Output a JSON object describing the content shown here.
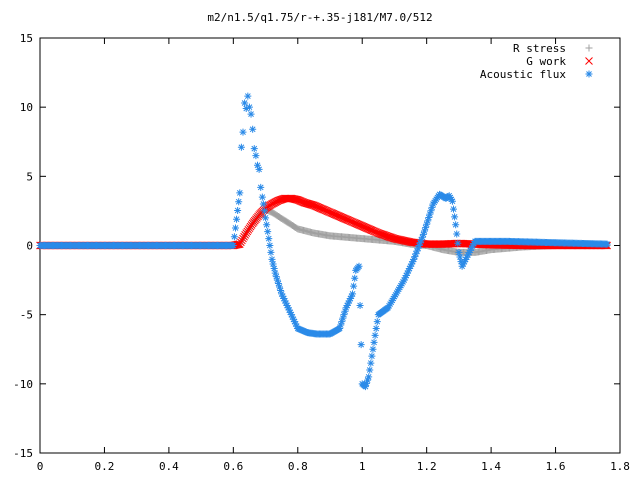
{
  "chart_data": {
    "type": "scatter",
    "title": "m2/n1.5/q1.75/r-+.35-j181/M7.0/512",
    "xlabel": "",
    "ylabel": "",
    "xlim": [
      0,
      1.8
    ],
    "ylim": [
      -15,
      15
    ],
    "xticks": [
      "0",
      "0.2",
      "0.4",
      "0.6",
      "0.8",
      "1",
      "1.2",
      "1.4",
      "1.6",
      "1.8"
    ],
    "yticks": [
      "15",
      "10",
      "5",
      "0",
      "-5",
      "-10",
      "-15"
    ],
    "legend_position": "top-right",
    "grid": false,
    "series": [
      {
        "name": "R stress",
        "marker": "+",
        "color": "#a0a0a0",
        "x": [
          0.0,
          0.6,
          0.62,
          0.64,
          0.66,
          0.68,
          0.7,
          0.72,
          0.74,
          0.76,
          0.78,
          0.8,
          0.85,
          0.9,
          0.95,
          1.0,
          1.05,
          1.1,
          1.15,
          1.2,
          1.25,
          1.3,
          1.35,
          1.4,
          1.45,
          1.5,
          1.6,
          1.7,
          1.76
        ],
        "y": [
          0.0,
          0.0,
          0.1,
          0.9,
          1.6,
          2.2,
          2.6,
          2.4,
          2.1,
          1.8,
          1.5,
          1.2,
          0.9,
          0.7,
          0.6,
          0.5,
          0.4,
          0.3,
          0.1,
          0.0,
          -0.3,
          -0.5,
          -0.5,
          -0.3,
          -0.2,
          -0.1,
          0.0,
          0.1,
          0.0
        ]
      },
      {
        "name": "G work",
        "marker": "x",
        "color": "#ff0000",
        "x": [
          0.0,
          0.6,
          0.62,
          0.64,
          0.66,
          0.68,
          0.7,
          0.72,
          0.74,
          0.76,
          0.78,
          0.8,
          0.82,
          0.85,
          0.9,
          0.95,
          1.0,
          1.05,
          1.1,
          1.15,
          1.2,
          1.25,
          1.3,
          1.35,
          1.4,
          1.5,
          1.6,
          1.7,
          1.76
        ],
        "y": [
          0.0,
          0.0,
          0.1,
          0.9,
          1.6,
          2.2,
          2.7,
          3.0,
          3.25,
          3.4,
          3.4,
          3.3,
          3.1,
          2.9,
          2.4,
          1.9,
          1.4,
          0.9,
          0.5,
          0.25,
          0.1,
          0.1,
          0.15,
          0.1,
          0.05,
          0.0,
          0.0,
          0.0,
          0.0
        ]
      },
      {
        "name": "Acoustic flux",
        "marker": "*",
        "color": "#2a8ae8",
        "x": [
          0.0,
          0.6,
          0.62,
          0.625,
          0.63,
          0.635,
          0.64,
          0.645,
          0.65,
          0.655,
          0.66,
          0.665,
          0.67,
          0.675,
          0.68,
          0.685,
          0.69,
          0.7,
          0.71,
          0.72,
          0.73,
          0.75,
          0.78,
          0.8,
          0.83,
          0.86,
          0.9,
          0.93,
          0.95,
          0.97,
          0.98,
          0.99,
          1.0,
          1.01,
          1.02,
          1.03,
          1.05,
          1.08,
          1.1,
          1.13,
          1.16,
          1.19,
          1.22,
          1.24,
          1.26,
          1.27,
          1.28,
          1.29,
          1.3,
          1.31,
          1.35,
          1.45,
          1.6,
          1.76
        ],
        "y": [
          0.0,
          0.0,
          3.8,
          7.1,
          8.2,
          10.3,
          9.9,
          10.8,
          10.0,
          9.5,
          8.4,
          7.0,
          6.5,
          5.8,
          5.5,
          4.2,
          3.5,
          2.0,
          0.5,
          -1.0,
          -2.0,
          -3.5,
          -5.0,
          -6.0,
          -6.3,
          -6.4,
          -6.4,
          -6.0,
          -4.5,
          -3.5,
          -1.8,
          -1.5,
          -10.0,
          -10.2,
          -9.5,
          -8.0,
          -5.0,
          -4.5,
          -3.7,
          -2.5,
          -1.0,
          0.8,
          3.0,
          3.7,
          3.4,
          3.6,
          3.2,
          1.5,
          -0.5,
          -1.5,
          0.3,
          0.3,
          0.2,
          0.1
        ]
      }
    ]
  }
}
